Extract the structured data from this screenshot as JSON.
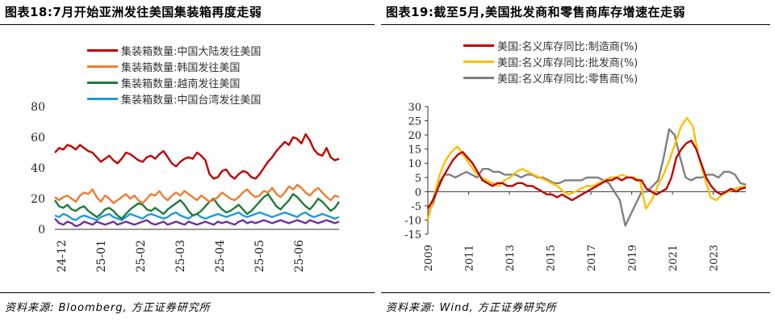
{
  "left": {
    "title": "图表18:7月开始亚洲发往美国集装箱再度走弱",
    "source": "资料来源: Bloomberg, 方正证券研究所"
  },
  "right": {
    "title": "图表19:截至5月,美国批发商和零售商库存增速在走弱",
    "source": "资料来源: Wind, 方正证券研究所"
  },
  "chart_data": [
    {
      "type": "line",
      "title": "图表18:7月开始亚洲发往美国集装箱再度走弱",
      "x_tick_labels": [
        "24-12",
        "25-01",
        "25-02",
        "25-03",
        "25-04",
        "25-05",
        "25-06"
      ],
      "ylim": [
        0,
        80
      ],
      "y_ticks": [
        0,
        20,
        40,
        60,
        80
      ],
      "legend_position": "top",
      "series": [
        {
          "name": "集装箱数量:中国大陆发往美国",
          "color": "#c00000",
          "values": [
            50,
            53,
            52,
            55,
            54,
            52,
            55,
            53,
            51,
            50,
            47,
            44,
            46,
            48,
            45,
            43,
            46,
            50,
            49,
            47,
            45,
            44,
            47,
            48,
            46,
            49,
            51,
            47,
            43,
            41,
            44,
            46,
            47,
            46,
            50,
            48,
            45,
            36,
            33,
            34,
            38,
            39,
            35,
            33,
            36,
            38,
            37,
            34,
            33,
            36,
            40,
            44,
            47,
            51,
            54,
            57,
            55,
            60,
            59,
            56,
            62,
            58,
            52,
            49,
            48,
            53,
            47,
            45,
            46
          ]
        },
        {
          "name": "集装箱数量:韩国发往美国",
          "color": "#ed7d31",
          "values": [
            21,
            19,
            21,
            22,
            20,
            18,
            22,
            24,
            23,
            26,
            21,
            18,
            22,
            20,
            17,
            19,
            21,
            23,
            20,
            22,
            19,
            17,
            20,
            23,
            22,
            25,
            21,
            19,
            22,
            24,
            22,
            25,
            23,
            21,
            19,
            22,
            20,
            18,
            19,
            21,
            24,
            22,
            20,
            19,
            21,
            24,
            26,
            23,
            21,
            22,
            25,
            24,
            27,
            23,
            21,
            24,
            28,
            26,
            29,
            27,
            24,
            22,
            25,
            27,
            24,
            21,
            19,
            22,
            21
          ]
        },
        {
          "name": "集装箱数量:越南发往美国",
          "color": "#217a3a",
          "values": [
            19,
            15,
            14,
            16,
            13,
            12,
            14,
            15,
            12,
            10,
            8,
            10,
            13,
            14,
            12,
            9,
            7,
            10,
            13,
            15,
            17,
            16,
            13,
            12,
            14,
            12,
            10,
            13,
            15,
            17,
            19,
            16,
            12,
            9,
            10,
            12,
            15,
            18,
            20,
            16,
            13,
            11,
            12,
            14,
            16,
            13,
            10,
            12,
            15,
            18,
            21,
            23,
            19,
            15,
            13,
            16,
            19,
            23,
            21,
            18,
            15,
            13,
            16,
            20,
            18,
            15,
            12,
            14,
            18
          ]
        },
        {
          "name": "集装箱数量:中国台湾发往美国",
          "color": "#1f9bd6",
          "values": [
            9,
            8,
            10,
            9,
            7,
            6,
            8,
            9,
            8,
            7,
            6,
            8,
            9,
            10,
            8,
            7,
            6,
            8,
            10,
            9,
            8,
            7,
            9,
            10,
            9,
            8,
            7,
            8,
            10,
            11,
            9,
            8,
            7,
            9,
            10,
            8,
            7,
            8,
            9,
            10,
            9,
            8,
            9,
            10,
            11,
            9,
            8,
            9,
            10,
            11,
            10,
            9,
            8,
            9,
            10,
            11,
            10,
            9,
            8,
            10,
            11,
            9,
            8,
            9,
            10,
            9,
            8,
            7,
            8
          ]
        },
        {
          "name": "",
          "color": "#7030a0",
          "values": [
            7,
            4,
            3,
            5,
            4,
            2,
            3,
            5,
            4,
            3,
            5,
            4,
            3,
            4,
            5,
            3,
            4,
            5,
            4,
            3,
            4,
            5,
            6,
            4,
            3,
            4,
            5,
            3,
            4,
            5,
            4,
            3,
            5,
            4,
            3,
            4,
            5,
            4,
            3,
            5,
            4,
            5,
            4,
            3,
            5,
            6,
            4,
            5,
            4,
            5,
            6,
            5,
            4,
            5,
            6,
            5,
            4,
            5,
            6,
            5,
            4,
            6,
            5,
            4,
            5,
            6,
            5,
            4,
            5
          ]
        }
      ]
    },
    {
      "type": "line",
      "title": "图表19:截至5月,美国批发商和零售商库存增速在走弱",
      "x_tick_labels": [
        "2009",
        "2011",
        "2013",
        "2015",
        "2017",
        "2019",
        "2021",
        "2023"
      ],
      "x_start": 2009.0,
      "x_step": 0.25,
      "ylim": [
        -15,
        30
      ],
      "y_ticks": [
        -15,
        -10,
        -5,
        0,
        5,
        10,
        15,
        20,
        25,
        30
      ],
      "legend_position": "top-left",
      "series": [
        {
          "name": "美国:名义库存同比:制造商(%)",
          "color": "#c00000",
          "values": [
            -6,
            -3,
            1,
            5,
            8,
            11,
            13,
            14,
            12,
            10,
            7,
            4,
            3,
            2,
            3,
            3,
            2,
            2,
            3,
            3,
            2,
            2,
            1,
            0,
            -1,
            -1,
            -2,
            -1,
            -2,
            -3,
            -2,
            -1,
            0,
            1,
            2,
            3,
            4,
            4,
            5,
            4,
            5,
            5,
            4,
            4,
            1,
            0,
            -1,
            0,
            1,
            5,
            12,
            15,
            17,
            18,
            15,
            10,
            5,
            2,
            0,
            -1,
            0,
            1,
            0,
            1,
            1.5
          ]
        },
        {
          "name": "美国:名义库存同比:批发商(%)",
          "color": "#ffc000",
          "values": [
            -10,
            -2,
            6,
            11,
            14,
            16,
            13,
            10,
            7,
            5,
            4,
            3,
            2,
            4,
            5,
            7,
            8,
            7,
            6,
            5,
            4,
            3,
            2,
            0,
            -1,
            0,
            1,
            2,
            2,
            3,
            4,
            5,
            5,
            6,
            5,
            5,
            4,
            -6,
            -3,
            2,
            6,
            11,
            17,
            23,
            26,
            23,
            12,
            5,
            -2,
            -3,
            -1,
            0,
            1,
            1.5,
            2
          ]
        },
        {
          "name": "美国:名义库存同比:零售商(%)",
          "color": "#808080",
          "values": [
            -8,
            -4,
            3,
            6,
            6,
            5,
            6,
            7,
            6,
            5,
            8,
            8,
            7,
            7,
            6,
            6,
            6,
            5,
            6,
            6,
            5,
            5,
            4,
            3,
            3,
            4,
            4,
            4,
            4,
            5,
            5,
            5,
            4,
            3,
            0,
            -3,
            -12,
            -8,
            -4,
            0,
            0,
            2,
            4,
            12,
            22,
            20,
            12,
            5,
            4,
            5,
            5,
            6,
            6,
            5,
            7,
            7,
            6,
            3,
            2.5
          ]
        }
      ]
    }
  ]
}
